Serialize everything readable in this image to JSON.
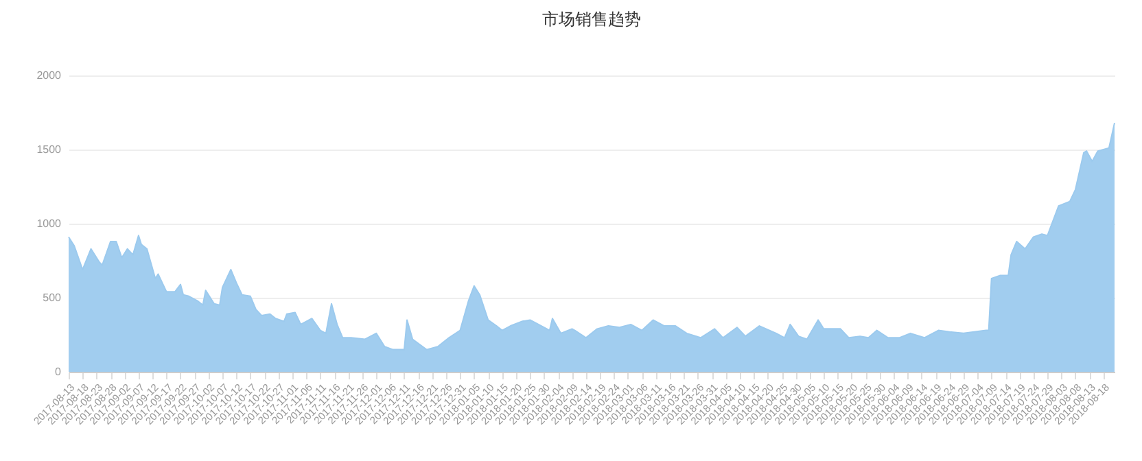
{
  "chart_data": {
    "type": "area",
    "title": "市场销售趋势",
    "x": [
      "2017-08-13",
      "2017-08-15",
      "2017-08-18",
      "2017-08-21",
      "2017-08-24",
      "2017-08-25",
      "2017-08-28",
      "2017-08-30",
      "2017-09-01",
      "2017-09-03",
      "2017-09-05",
      "2017-09-07",
      "2017-09-08",
      "2017-09-10",
      "2017-09-13",
      "2017-09-14",
      "2017-09-17",
      "2017-09-20",
      "2017-09-22",
      "2017-09-23",
      "2017-09-25",
      "2017-09-28",
      "2017-09-30",
      "2017-10-01",
      "2017-10-04",
      "2017-10-06",
      "2017-10-07",
      "2017-10-10",
      "2017-10-12",
      "2017-10-14",
      "2017-10-17",
      "2017-10-19",
      "2017-10-21",
      "2017-10-24",
      "2017-10-26",
      "2017-10-29",
      "2017-10-30",
      "2017-11-02",
      "2017-11-04",
      "2017-11-08",
      "2017-11-11",
      "2017-11-13",
      "2017-11-15",
      "2017-11-17",
      "2017-11-19",
      "2017-11-22",
      "2017-11-27",
      "2017-12-01",
      "2017-12-04",
      "2017-12-07",
      "2017-12-11",
      "2017-12-12",
      "2017-12-14",
      "2017-12-19",
      "2017-12-23",
      "2017-12-27",
      "2017-12-31",
      "2018-01-03",
      "2018-01-05",
      "2018-01-07",
      "2018-01-10",
      "2018-01-13",
      "2018-01-15",
      "2018-01-18",
      "2018-01-22",
      "2018-01-25",
      "2018-01-28",
      "2018-02-01",
      "2018-02-02",
      "2018-02-05",
      "2018-02-09",
      "2018-02-10",
      "2018-02-14",
      "2018-02-18",
      "2018-02-22",
      "2018-02-26",
      "2018-03-02",
      "2018-03-06",
      "2018-03-10",
      "2018-03-14",
      "2018-03-18",
      "2018-03-22",
      "2018-03-27",
      "2018-04-01",
      "2018-04-04",
      "2018-04-09",
      "2018-04-12",
      "2018-04-17",
      "2018-04-23",
      "2018-04-26",
      "2018-04-28",
      "2018-05-01",
      "2018-05-04",
      "2018-05-08",
      "2018-05-10",
      "2018-05-16",
      "2018-05-19",
      "2018-05-23",
      "2018-05-26",
      "2018-05-29",
      "2018-06-02",
      "2018-06-06",
      "2018-06-10",
      "2018-06-15",
      "2018-06-20",
      "2018-06-24",
      "2018-06-29",
      "2018-07-07",
      "2018-07-08",
      "2018-07-09",
      "2018-07-12",
      "2018-07-15",
      "2018-07-16",
      "2018-07-18",
      "2018-07-21",
      "2018-07-24",
      "2018-07-27",
      "2018-07-29",
      "2018-08-02",
      "2018-08-06",
      "2018-08-08",
      "2018-08-11",
      "2018-08-12",
      "2018-08-14",
      "2018-08-16",
      "2018-08-20",
      "2018-08-22"
    ],
    "series": [
      {
        "color": "#9ccaee",
        "values": [
          910,
          850,
          690,
          830,
          740,
          720,
          880,
          880,
          770,
          830,
          790,
          920,
          860,
          830,
          630,
          660,
          540,
          540,
          590,
          520,
          510,
          480,
          450,
          550,
          460,
          450,
          570,
          690,
          600,
          520,
          510,
          420,
          380,
          390,
          360,
          340,
          390,
          400,
          320,
          360,
          280,
          260,
          460,
          320,
          230,
          230,
          220,
          260,
          170,
          150,
          150,
          350,
          220,
          150,
          170,
          230,
          280,
          480,
          580,
          520,
          350,
          310,
          280,
          310,
          340,
          350,
          320,
          280,
          360,
          260,
          290,
          280,
          230,
          290,
          310,
          300,
          320,
          280,
          350,
          310,
          310,
          260,
          230,
          290,
          230,
          300,
          240,
          310,
          260,
          230,
          320,
          240,
          220,
          350,
          290,
          290,
          230,
          240,
          230,
          280,
          230,
          230,
          260,
          230,
          280,
          270,
          260,
          280,
          280,
          630,
          650,
          650,
          790,
          880,
          830,
          910,
          930,
          920,
          1120,
          1150,
          1230,
          1480,
          1490,
          1420,
          1490,
          1510,
          1680
        ]
      }
    ],
    "xlim": [
      "2017-08-13",
      "2018-08-22"
    ],
    "xticks": [
      "2017-08-13",
      "2017-08-18",
      "2017-08-23",
      "2017-08-28",
      "2017-09-02",
      "2017-09-07",
      "2017-09-12",
      "2017-09-17",
      "2017-09-22",
      "2017-09-27",
      "2017-10-02",
      "2017-10-07",
      "2017-10-12",
      "2017-10-17",
      "2017-10-22",
      "2017-10-27",
      "2017-11-01",
      "2017-11-06",
      "2017-11-11",
      "2017-11-16",
      "2017-11-21",
      "2017-11-26",
      "2017-12-01",
      "2017-12-06",
      "2017-12-11",
      "2017-12-16",
      "2017-12-21",
      "2017-12-26",
      "2017-12-31",
      "2018-01-05",
      "2018-01-10",
      "2018-01-15",
      "2018-01-20",
      "2018-01-25",
      "2018-01-30",
      "2018-02-04",
      "2018-02-09",
      "2018-02-14",
      "2018-02-19",
      "2018-02-24",
      "2018-03-01",
      "2018-03-06",
      "2018-03-11",
      "2018-03-16",
      "2018-03-21",
      "2018-03-26",
      "2018-03-31",
      "2018-04-05",
      "2018-04-10",
      "2018-04-15",
      "2018-04-20",
      "2018-04-25",
      "2018-04-30",
      "2018-05-05",
      "2018-05-10",
      "2018-05-15",
      "2018-05-20",
      "2018-05-25",
      "2018-05-30",
      "2018-06-04",
      "2018-06-09",
      "2018-06-14",
      "2018-06-19",
      "2018-06-24",
      "2018-06-29",
      "2018-07-04",
      "2018-07-09",
      "2018-07-14",
      "2018-07-19",
      "2018-07-24",
      "2018-07-29",
      "2018-08-03",
      "2018-08-08",
      "2018-08-13",
      "2018-08-18"
    ],
    "ylim": [
      0,
      2000
    ],
    "yticks": [
      0,
      500,
      1000,
      1500,
      2000
    ],
    "grid": "y"
  }
}
